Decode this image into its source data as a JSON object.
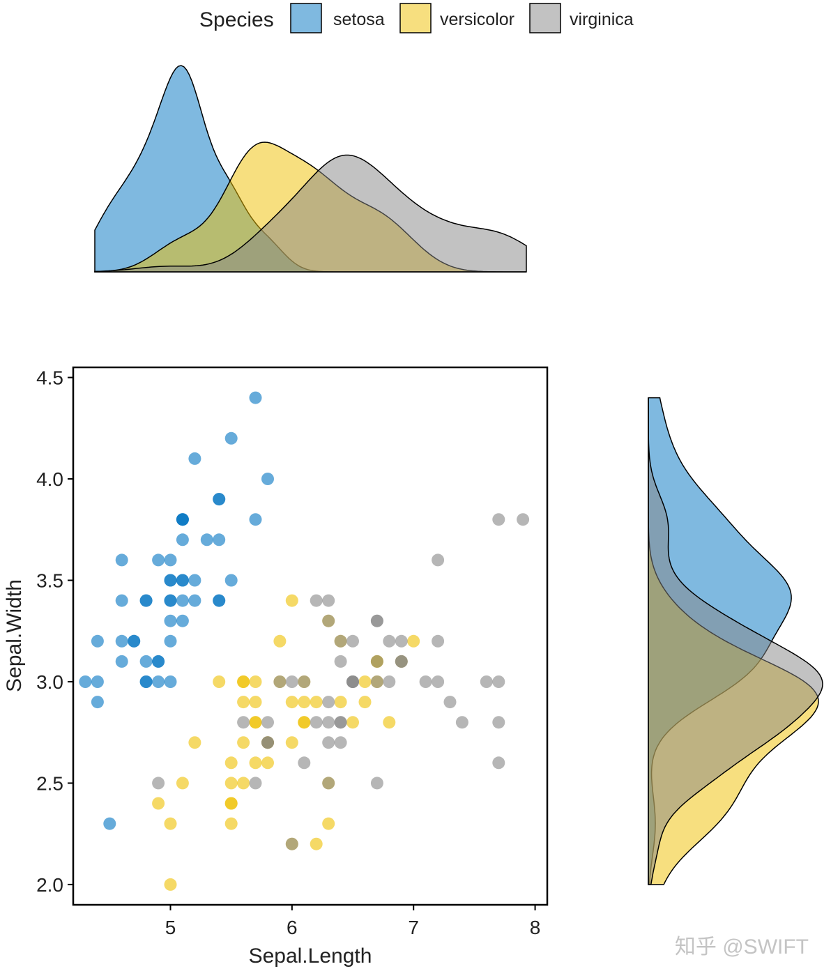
{
  "chart_data": {
    "type": "scatter",
    "title": "",
    "xlabel": "Sepal.Length",
    "ylabel": "Sepal.Width",
    "xlim": [
      4.2,
      8.1
    ],
    "ylim": [
      1.9,
      4.55
    ],
    "x_ticks": [
      5,
      6,
      7,
      8
    ],
    "y_ticks": [
      2.0,
      2.5,
      3.0,
      3.5,
      4.0,
      4.5
    ],
    "x_tick_labels": [
      "5",
      "6",
      "7",
      "8"
    ],
    "y_tick_labels": [
      "2.0",
      "2.5",
      "3.0",
      "3.5",
      "4.0",
      "4.5"
    ],
    "grid": false,
    "legend": {
      "title": "Species",
      "position": "top",
      "entries": [
        "setosa",
        "versicolor",
        "virginica"
      ]
    },
    "marginal_plots": {
      "top": "density of Sepal.Length by Species",
      "right": "density of Sepal.Width by Species"
    },
    "colors": {
      "setosa": "#0073C2",
      "versicolor": "#EFC000",
      "virginica": "#868686"
    },
    "series": [
      {
        "name": "setosa",
        "points": [
          [
            5.1,
            3.5
          ],
          [
            4.9,
            3.0
          ],
          [
            4.7,
            3.2
          ],
          [
            4.6,
            3.1
          ],
          [
            5.0,
            3.6
          ],
          [
            5.4,
            3.9
          ],
          [
            4.6,
            3.4
          ],
          [
            5.0,
            3.4
          ],
          [
            4.4,
            2.9
          ],
          [
            4.9,
            3.1
          ],
          [
            5.4,
            3.7
          ],
          [
            4.8,
            3.4
          ],
          [
            4.8,
            3.0
          ],
          [
            4.3,
            3.0
          ],
          [
            5.8,
            4.0
          ],
          [
            5.7,
            4.4
          ],
          [
            5.4,
            3.9
          ],
          [
            5.1,
            3.5
          ],
          [
            5.7,
            3.8
          ],
          [
            5.1,
            3.8
          ],
          [
            5.4,
            3.4
          ],
          [
            5.1,
            3.7
          ],
          [
            4.6,
            3.6
          ],
          [
            5.1,
            3.3
          ],
          [
            4.8,
            3.4
          ],
          [
            5.0,
            3.0
          ],
          [
            5.0,
            3.4
          ],
          [
            5.2,
            3.5
          ],
          [
            5.2,
            3.4
          ],
          [
            4.7,
            3.2
          ],
          [
            4.8,
            3.1
          ],
          [
            5.4,
            3.4
          ],
          [
            5.2,
            4.1
          ],
          [
            5.5,
            4.2
          ],
          [
            4.9,
            3.1
          ],
          [
            5.0,
            3.2
          ],
          [
            5.5,
            3.5
          ],
          [
            4.9,
            3.6
          ],
          [
            4.4,
            3.0
          ],
          [
            5.1,
            3.4
          ],
          [
            5.0,
            3.5
          ],
          [
            4.5,
            2.3
          ],
          [
            4.4,
            3.2
          ],
          [
            5.0,
            3.5
          ],
          [
            5.1,
            3.8
          ],
          [
            4.8,
            3.0
          ],
          [
            5.1,
            3.8
          ],
          [
            4.6,
            3.2
          ],
          [
            5.3,
            3.7
          ],
          [
            5.0,
            3.3
          ]
        ]
      },
      {
        "name": "versicolor",
        "points": [
          [
            7.0,
            3.2
          ],
          [
            6.4,
            3.2
          ],
          [
            6.9,
            3.1
          ],
          [
            5.5,
            2.3
          ],
          [
            6.5,
            2.8
          ],
          [
            5.7,
            2.8
          ],
          [
            6.3,
            3.3
          ],
          [
            4.9,
            2.4
          ],
          [
            6.6,
            2.9
          ],
          [
            5.2,
            2.7
          ],
          [
            5.0,
            2.0
          ],
          [
            5.9,
            3.0
          ],
          [
            6.0,
            2.2
          ],
          [
            6.1,
            2.9
          ],
          [
            5.6,
            2.9
          ],
          [
            6.7,
            3.1
          ],
          [
            5.6,
            3.0
          ],
          [
            5.8,
            2.7
          ],
          [
            6.2,
            2.2
          ],
          [
            5.6,
            2.5
          ],
          [
            5.9,
            3.2
          ],
          [
            6.1,
            2.8
          ],
          [
            6.3,
            2.5
          ],
          [
            6.1,
            2.8
          ],
          [
            6.4,
            2.9
          ],
          [
            6.6,
            3.0
          ],
          [
            6.8,
            2.8
          ],
          [
            6.7,
            3.0
          ],
          [
            6.0,
            2.9
          ],
          [
            5.7,
            2.6
          ],
          [
            5.5,
            2.4
          ],
          [
            5.5,
            2.4
          ],
          [
            5.8,
            2.7
          ],
          [
            6.0,
            2.7
          ],
          [
            5.4,
            3.0
          ],
          [
            6.0,
            3.4
          ],
          [
            6.7,
            3.1
          ],
          [
            6.3,
            2.3
          ],
          [
            5.6,
            3.0
          ],
          [
            5.5,
            2.5
          ],
          [
            5.5,
            2.6
          ],
          [
            6.1,
            3.0
          ],
          [
            5.8,
            2.6
          ],
          [
            5.0,
            2.3
          ],
          [
            5.6,
            2.7
          ],
          [
            5.7,
            3.0
          ],
          [
            5.7,
            2.9
          ],
          [
            6.2,
            2.9
          ],
          [
            5.1,
            2.5
          ],
          [
            5.7,
            2.8
          ]
        ]
      },
      {
        "name": "virginica",
        "points": [
          [
            6.3,
            3.3
          ],
          [
            5.8,
            2.7
          ],
          [
            7.1,
            3.0
          ],
          [
            6.3,
            2.9
          ],
          [
            6.5,
            3.0
          ],
          [
            7.6,
            3.0
          ],
          [
            4.9,
            2.5
          ],
          [
            7.3,
            2.9
          ],
          [
            6.7,
            2.5
          ],
          [
            7.2,
            3.6
          ],
          [
            6.5,
            3.2
          ],
          [
            6.4,
            2.7
          ],
          [
            6.8,
            3.0
          ],
          [
            5.7,
            2.5
          ],
          [
            5.8,
            2.8
          ],
          [
            6.4,
            3.2
          ],
          [
            6.5,
            3.0
          ],
          [
            7.7,
            3.8
          ],
          [
            7.7,
            2.6
          ],
          [
            6.0,
            2.2
          ],
          [
            6.9,
            3.2
          ],
          [
            5.6,
            2.8
          ],
          [
            7.7,
            2.8
          ],
          [
            6.3,
            2.7
          ],
          [
            6.7,
            3.3
          ],
          [
            7.2,
            3.2
          ],
          [
            6.2,
            2.8
          ],
          [
            6.1,
            3.0
          ],
          [
            6.4,
            2.8
          ],
          [
            7.2,
            3.0
          ],
          [
            7.4,
            2.8
          ],
          [
            7.9,
            3.8
          ],
          [
            6.4,
            2.8
          ],
          [
            6.3,
            2.8
          ],
          [
            6.1,
            2.6
          ],
          [
            7.7,
            3.0
          ],
          [
            6.3,
            3.4
          ],
          [
            6.4,
            3.1
          ],
          [
            6.0,
            3.0
          ],
          [
            6.9,
            3.1
          ],
          [
            6.7,
            3.1
          ],
          [
            6.9,
            3.1
          ],
          [
            5.8,
            2.7
          ],
          [
            6.8,
            3.2
          ],
          [
            6.7,
            3.3
          ],
          [
            6.7,
            3.0
          ],
          [
            6.3,
            2.5
          ],
          [
            6.5,
            3.0
          ],
          [
            6.2,
            3.4
          ],
          [
            5.9,
            3.0
          ]
        ]
      }
    ]
  },
  "watermark": "知乎 @SWIFT"
}
